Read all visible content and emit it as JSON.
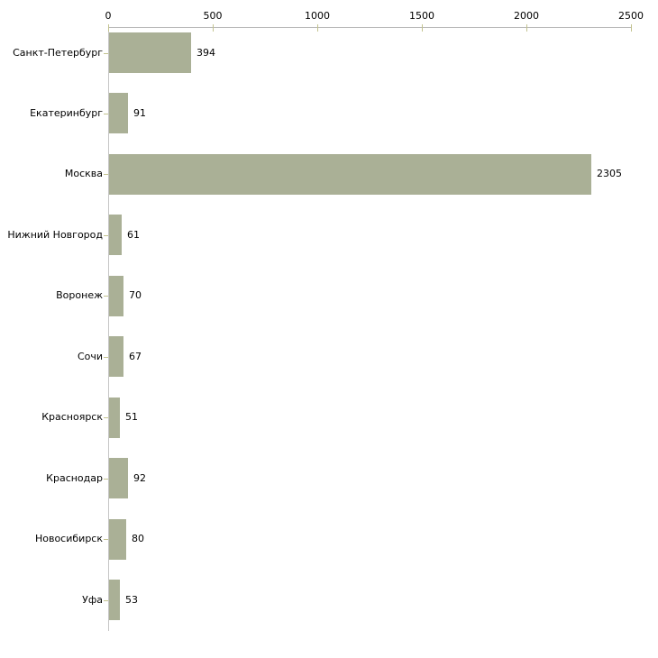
{
  "chart_data": {
    "type": "bar",
    "orientation": "horizontal",
    "title": "",
    "xlabel": "",
    "ylabel": "",
    "categories": [
      "Санкт-Петербург",
      "Екатеринбург",
      "Москва",
      "Нижний Новгород",
      "Воронеж",
      "Сочи",
      "Красноярск",
      "Краснодар",
      "Новосибирск",
      "Уфа"
    ],
    "values": [
      394,
      91,
      2305,
      61,
      70,
      67,
      51,
      92,
      80,
      53
    ],
    "xlim": [
      0,
      2500
    ],
    "xticks": [
      0,
      500,
      1000,
      1500,
      2000,
      2500
    ],
    "axis_position": "top",
    "grid": false,
    "legend": false,
    "data_labels": true,
    "colors": {
      "bar_fill": "#aab096",
      "axis_line": "#b9b9b9",
      "tick_mark": "#c3c38f",
      "text": "#000000",
      "background": "#ffffff"
    }
  }
}
